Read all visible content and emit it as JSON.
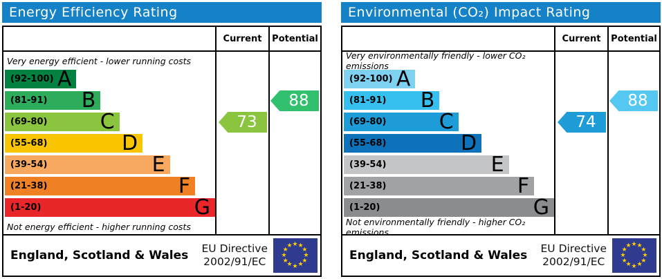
{
  "colors": {
    "header_bg": "#1581c6",
    "flag_bg": "#2e3b8e",
    "star": "#ffcc00"
  },
  "chart_data": [
    {
      "type": "bar",
      "title": "Energy Efficiency Rating",
      "top_note": "Very energy efficient - lower running costs",
      "bottom_note": "Not energy efficient - higher running costs",
      "col_current": "Current",
      "col_potential": "Potential",
      "categories": [
        "A",
        "B",
        "C",
        "D",
        "E",
        "F",
        "G"
      ],
      "bands": [
        {
          "letter": "A",
          "range": "(92-100)",
          "color": "#038141",
          "width_pct": 34
        },
        {
          "letter": "B",
          "range": "(81-91)",
          "color": "#2dac5b",
          "width_pct": 45.5
        },
        {
          "letter": "C",
          "range": "(69-80)",
          "color": "#8bc540",
          "width_pct": 54.5
        },
        {
          "letter": "D",
          "range": "(55-68)",
          "color": "#f9c400",
          "width_pct": 65.5
        },
        {
          "letter": "E",
          "range": "(39-54)",
          "color": "#f9a95f",
          "width_pct": 78.5
        },
        {
          "letter": "F",
          "range": "(21-38)",
          "color": "#ef8023",
          "width_pct": 90.5
        },
        {
          "letter": "G",
          "range": "(1-20)",
          "color": "#e9262a",
          "width_pct": 100
        }
      ],
      "current": {
        "value": 73,
        "band": "C",
        "row": 2,
        "color": "#8bc540"
      },
      "potential": {
        "value": 88,
        "band": "B",
        "row": 1,
        "color": "#33c06e"
      },
      "footer_region": "England, Scotland & Wales",
      "directive_line1": "EU Directive",
      "directive_line2": "2002/91/EC"
    },
    {
      "type": "bar",
      "title": "Environmental (CO₂) Impact Rating",
      "top_note": "Very environmentally friendly - lower CO₂ emissions",
      "bottom_note": "Not environmentally friendly - higher CO₂ emissions",
      "col_current": "Current",
      "col_potential": "Potential",
      "categories": [
        "A",
        "B",
        "C",
        "D",
        "E",
        "F",
        "G"
      ],
      "bands": [
        {
          "letter": "A",
          "range": "(92-100)",
          "color": "#7ed1f1",
          "width_pct": 34
        },
        {
          "letter": "B",
          "range": "(81-91)",
          "color": "#36c0f0",
          "width_pct": 45.5
        },
        {
          "letter": "C",
          "range": "(69-80)",
          "color": "#1e9cd8",
          "width_pct": 54.5
        },
        {
          "letter": "D",
          "range": "(55-68)",
          "color": "#0d72b9",
          "width_pct": 65.5
        },
        {
          "letter": "E",
          "range": "(39-54)",
          "color": "#c4c5c7",
          "width_pct": 78.5
        },
        {
          "letter": "F",
          "range": "(21-38)",
          "color": "#a0a2a5",
          "width_pct": 90.5
        },
        {
          "letter": "G",
          "range": "(1-20)",
          "color": "#8a8c8f",
          "width_pct": 100
        }
      ],
      "current": {
        "value": 74,
        "band": "C",
        "row": 2,
        "color": "#1e9cd8"
      },
      "potential": {
        "value": 88,
        "band": "B",
        "row": 1,
        "color": "#55c8f2"
      },
      "footer_region": "England, Scotland & Wales",
      "directive_line1": "EU Directive",
      "directive_line2": "2002/91/EC"
    }
  ]
}
